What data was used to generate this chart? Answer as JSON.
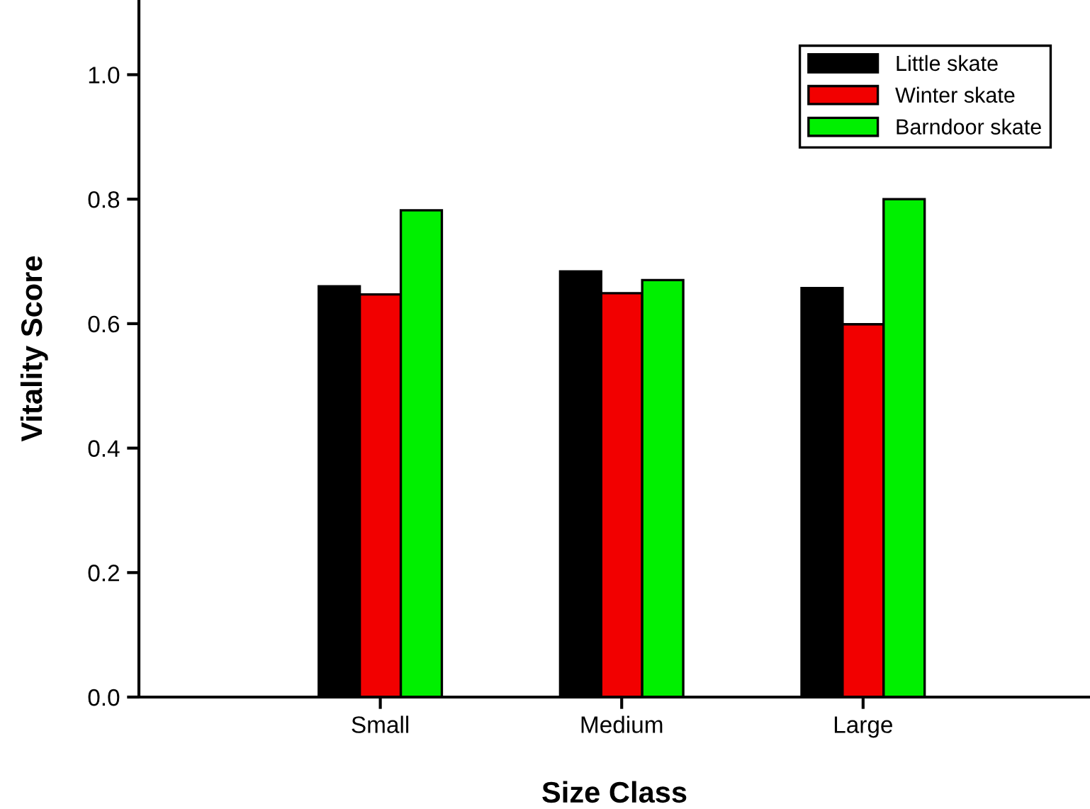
{
  "chart_data": {
    "type": "bar",
    "xlabel": "Size Class",
    "ylabel": "Vitality Score",
    "categories": [
      "Small",
      "Medium",
      "Large"
    ],
    "series": [
      {
        "name": "Little skate",
        "color": "#000000",
        "values": [
          0.66,
          0.684,
          0.657
        ]
      },
      {
        "name": "Winter skate",
        "color": "#f20000",
        "values": [
          0.647,
          0.649,
          0.599
        ]
      },
      {
        "name": "Barndoor skate",
        "color": "#00f000",
        "values": [
          0.782,
          0.67,
          0.8
        ]
      }
    ],
    "ylim": [
      0,
      1.12
    ],
    "yticks": [
      {
        "value": 0,
        "label": "0.0"
      },
      0.2,
      0.4,
      0.6,
      0.8,
      {
        "value": 1,
        "label": "1.0"
      }
    ],
    "grid": false,
    "legend": "top right"
  }
}
